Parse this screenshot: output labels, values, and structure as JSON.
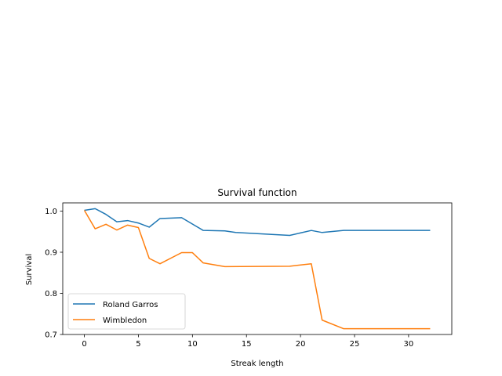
{
  "chart_data": {
    "type": "line",
    "title": "Survival function",
    "xlabel": "Streak length",
    "ylabel": "Survival",
    "xlim": [
      -2,
      34
    ],
    "ylim": [
      0.7,
      1.02
    ],
    "xticks": [
      0,
      5,
      10,
      15,
      20,
      25,
      30
    ],
    "yticks": [
      0.7,
      0.8,
      0.9,
      1.0
    ],
    "xtick_labels": [
      "0",
      "5",
      "10",
      "15",
      "20",
      "25",
      "30"
    ],
    "ytick_labels": [
      "0.7",
      "0.8",
      "0.9",
      "1.0"
    ],
    "grid": false,
    "legend_position": "lower-left",
    "series": [
      {
        "name": "Roland Garros",
        "color": "#1f77b4",
        "x": [
          0,
          1,
          2,
          3,
          4,
          5,
          6,
          7,
          9,
          11,
          13,
          14,
          19,
          21,
          22,
          24,
          32
        ],
        "y": [
          1.002,
          1.006,
          0.992,
          0.974,
          0.977,
          0.971,
          0.961,
          0.982,
          0.984,
          0.953,
          0.952,
          0.948,
          0.941,
          0.953,
          0.948,
          0.953,
          0.953
        ]
      },
      {
        "name": "Wimbledon",
        "color": "#ff7f0e",
        "x": [
          0,
          1,
          2,
          3,
          4,
          5,
          6,
          7,
          9,
          10,
          11,
          13,
          19,
          21,
          22,
          24,
          32
        ],
        "y": [
          1.002,
          0.957,
          0.968,
          0.954,
          0.966,
          0.96,
          0.885,
          0.872,
          0.899,
          0.899,
          0.874,
          0.865,
          0.866,
          0.872,
          0.735,
          0.714,
          0.714
        ]
      }
    ]
  }
}
